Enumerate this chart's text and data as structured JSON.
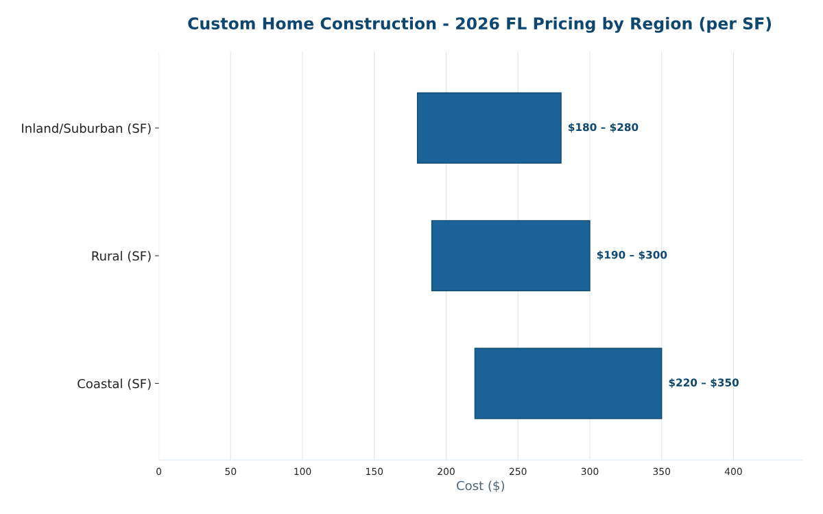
{
  "chart_data": {
    "type": "bar",
    "orientation": "horizontal",
    "title": "Custom Home Construction - 2026 FL Pricing by Region (per SF)",
    "xlabel": "Cost ($)",
    "categories": [
      "Inland/Suburban (SF)",
      "Rural (SF)",
      "Coastal (SF)"
    ],
    "base": [
      180,
      190,
      220
    ],
    "values": [
      100,
      110,
      130
    ],
    "annotations": [
      {
        "text": "$180 – $280",
        "x": 280,
        "y": "Inland/Suburban (SF)"
      },
      {
        "text": "$190 – $300",
        "x": 300,
        "y": "Rural (SF)"
      },
      {
        "text": "$220 – $350",
        "x": 350,
        "y": "Coastal (SF)"
      }
    ],
    "color": "#1a6399",
    "xlim": [
      0,
      448
    ],
    "xticks": [
      0,
      50,
      100,
      150,
      200,
      250,
      300,
      350,
      400
    ],
    "grid": "x"
  }
}
